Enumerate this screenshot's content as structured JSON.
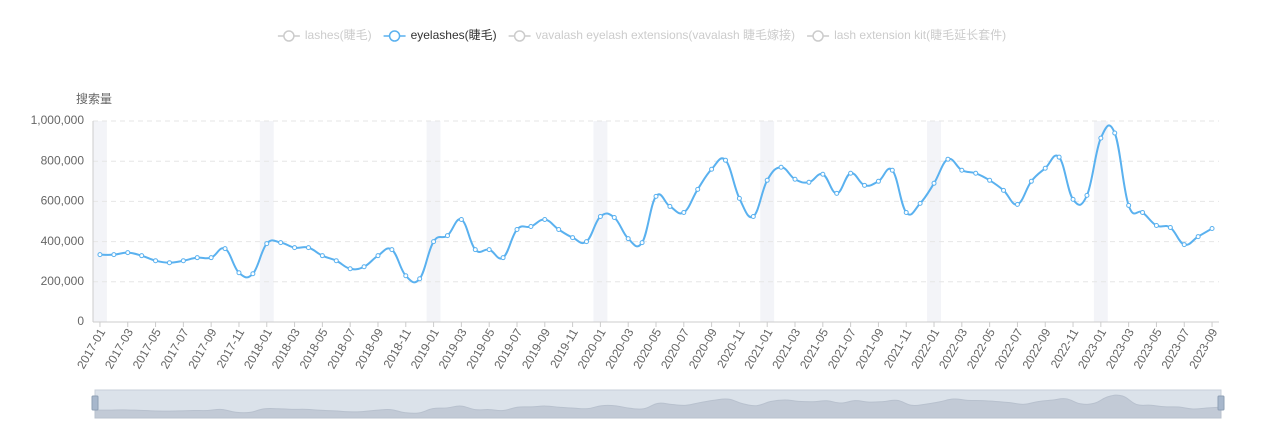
{
  "chart_data": {
    "type": "line",
    "y_axis_label": "搜索量",
    "categories": [
      "2017-01",
      null,
      "2017-03",
      null,
      "2017-05",
      null,
      "2017-07",
      null,
      "2017-09",
      null,
      "2017-11",
      null,
      "2018-01",
      null,
      "2018-03",
      null,
      "2018-05",
      null,
      "2018-07",
      null,
      "2018-09",
      null,
      "2018-11",
      null,
      "2019-01",
      null,
      "2019-03",
      null,
      "2019-05",
      null,
      "2019-07",
      null,
      "2019-09",
      null,
      "2019-11",
      null,
      "2020-01",
      null,
      "2020-03",
      null,
      "2020-05",
      null,
      "2020-07",
      null,
      "2020-09",
      null,
      "2020-11",
      null,
      "2021-01",
      null,
      "2021-03",
      null,
      "2021-05",
      null,
      "2021-07",
      null,
      "2021-09",
      null,
      "2021-11",
      null,
      "2022-01",
      null,
      "2022-03",
      null,
      "2022-05",
      null,
      "2022-07",
      null,
      "2022-09",
      null,
      "2022-11",
      null,
      "2023-01",
      null,
      "2023-03",
      null,
      "2023-05",
      null,
      "2023-07",
      null,
      "2023-09"
    ],
    "series": [
      {
        "name": "lashes(睫毛)",
        "hidden": true
      },
      {
        "name": "eyelashes(睫毛)",
        "color": "#5ab1ef",
        "values": [
          335000,
          335000,
          345000,
          330000,
          305000,
          295000,
          305000,
          320000,
          320000,
          365000,
          245000,
          240000,
          390000,
          395000,
          370000,
          370000,
          330000,
          305000,
          265000,
          275000,
          330000,
          360000,
          230000,
          215000,
          400000,
          430000,
          510000,
          360000,
          360000,
          320000,
          460000,
          475000,
          510000,
          460000,
          420000,
          400000,
          525000,
          520000,
          415000,
          395000,
          625000,
          575000,
          545000,
          660000,
          760000,
          805000,
          615000,
          525000,
          705000,
          770000,
          710000,
          695000,
          735000,
          640000,
          740000,
          680000,
          700000,
          755000,
          545000,
          590000,
          690000,
          810000,
          755000,
          740000,
          705000,
          655000,
          585000,
          700000,
          765000,
          820000,
          610000,
          630000,
          915000,
          940000,
          580000,
          545000,
          480000,
          470000,
          385000,
          425000,
          465000
        ]
      },
      {
        "name": "vavalash eyelash extensions(vavalash 睫毛嫁接)",
        "hidden": true
      },
      {
        "name": "lash extension kit(睫毛延长套件)",
        "hidden": true
      }
    ],
    "ylim": [
      0,
      1000000
    ],
    "yticks": [
      0,
      {
        "value": 200000,
        "label": "200,000"
      },
      {
        "value": 400000,
        "label": "400,000"
      },
      {
        "value": 600000,
        "label": "600,000"
      },
      {
        "value": 800000,
        "label": "800,000"
      },
      {
        "value": 1000000,
        "label": "1,000,000"
      }
    ],
    "grid": true
  }
}
